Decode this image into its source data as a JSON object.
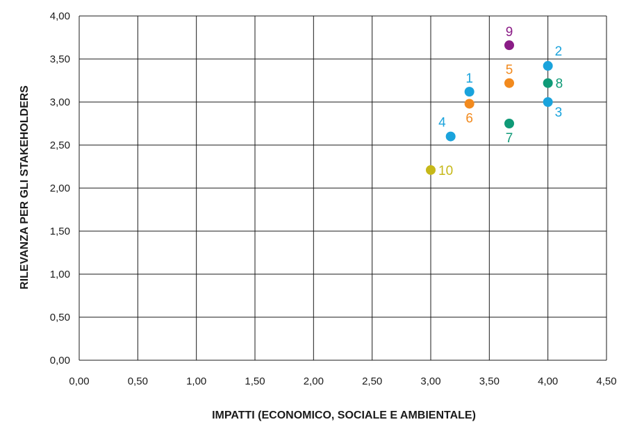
{
  "chart_data": {
    "type": "scatter",
    "xlabel": "IMPATTI (ECONOMICO, SOCIALE E AMBIENTALE)",
    "ylabel": "RILEVANZA PER GLI STAKEHOLDERS",
    "xlim": [
      0,
      4.5
    ],
    "ylim": [
      0,
      4
    ],
    "x_ticks": [
      0,
      0.5,
      1,
      1.5,
      2,
      2.5,
      3,
      3.5,
      4,
      4.5
    ],
    "x_tick_labels": [
      "0,00",
      "0,50",
      "1,00",
      "1,50",
      "2,00",
      "2,50",
      "3,00",
      "3,50",
      "4,00",
      "4,50"
    ],
    "y_ticks": [
      0,
      0.5,
      1,
      1.5,
      2,
      2.5,
      3,
      3.5,
      4
    ],
    "y_tick_labels": [
      "0,00",
      "0,50",
      "1,00",
      "1,50",
      "2,00",
      "2,50",
      "3,00",
      "3,50",
      "4,00"
    ],
    "grid": true,
    "points": [
      {
        "label": "1",
        "x": 3.33,
        "y": 3.12,
        "color": "#1aa3dc",
        "label_pos": "above"
      },
      {
        "label": "2",
        "x": 4.0,
        "y": 3.42,
        "color": "#1aa3dc",
        "label_pos": "above-right"
      },
      {
        "label": "3",
        "x": 4.0,
        "y": 3.0,
        "color": "#1aa3dc",
        "label_pos": "below-right"
      },
      {
        "label": "4",
        "x": 3.17,
        "y": 2.6,
        "color": "#1aa3dc",
        "label_pos": "above-left"
      },
      {
        "label": "5",
        "x": 3.67,
        "y": 3.22,
        "color": "#f28a1e",
        "label_pos": "above"
      },
      {
        "label": "6",
        "x": 3.33,
        "y": 2.98,
        "color": "#f28a1e",
        "label_pos": "below"
      },
      {
        "label": "7",
        "x": 3.67,
        "y": 2.75,
        "color": "#0f9a77",
        "label_pos": "below"
      },
      {
        "label": "8",
        "x": 4.0,
        "y": 3.22,
        "color": "#0f9a77",
        "label_pos": "right"
      },
      {
        "label": "9",
        "x": 3.67,
        "y": 3.66,
        "color": "#8a1c86",
        "label_pos": "above"
      },
      {
        "label": "10",
        "x": 3.0,
        "y": 2.21,
        "color": "#c6b819",
        "label_pos": "right"
      }
    ]
  }
}
